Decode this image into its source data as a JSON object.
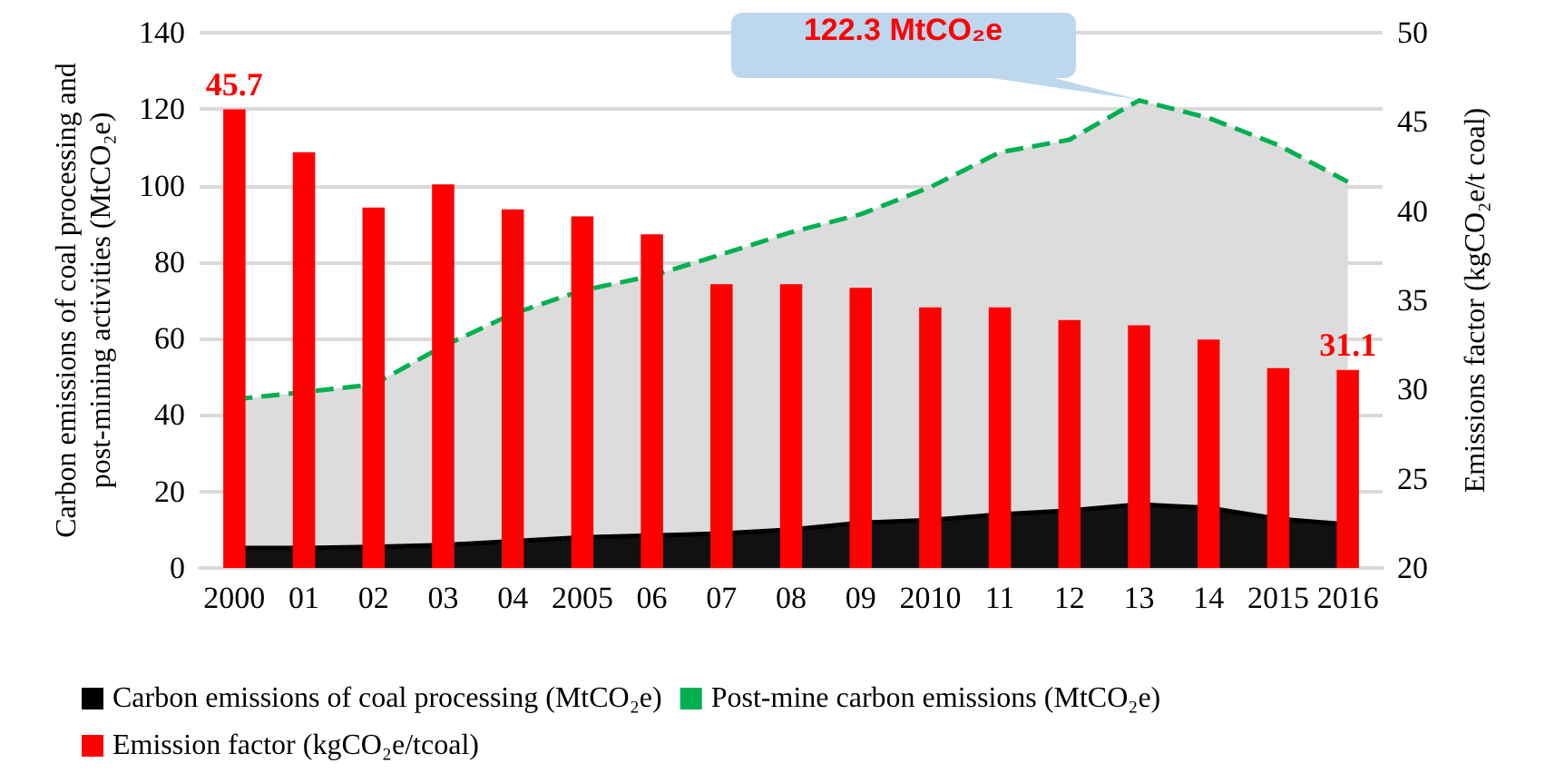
{
  "chart_data": {
    "type": "area",
    "categories": [
      "2000",
      "01",
      "02",
      "03",
      "04",
      "2005",
      "06",
      "07",
      "08",
      "09",
      "2010",
      "11",
      "12",
      "13",
      "14",
      "2015",
      "2016"
    ],
    "ylabel": "Carbon emissions of coal processing and post-mining activities (MtCO₂e)",
    "y2label": "Emissions factor (kgCO₂e/t coal)",
    "ylim": [
      0,
      140
    ],
    "yticks": [
      0,
      20,
      40,
      60,
      80,
      100,
      120,
      140
    ],
    "y2lim": [
      20,
      50
    ],
    "y2ticks": [
      20,
      25,
      30,
      35,
      40,
      45,
      50
    ],
    "grid": "y",
    "legend": "bottom",
    "marker": "none",
    "series": [
      {
        "name": "Post-mine carbon emissions (MtCO₂e)",
        "color": "#00b050",
        "line_style": "dashed",
        "values": [
          44.1,
          46,
          48,
          58,
          66.5,
          72.6,
          76.4,
          82,
          87.8,
          92.5,
          99.6,
          108.7,
          112,
          122.3,
          117.7,
          110.6,
          101
        ]
      },
      {
        "name": "Carbon emissions of coal processing (MtCO₂e)",
        "color": "#000000",
        "values": [
          5.2,
          5.2,
          5.5,
          6,
          7,
          8,
          8.5,
          9,
          10,
          11.8,
          12.5,
          14,
          15,
          16.6,
          15.7,
          12.8,
          11.4
        ]
      },
      {
        "name": "Emission factor (kgCO₂e/tcoal)",
        "type": "bar",
        "axis": "y2",
        "color": "#ff0000",
        "values": [
          45.7,
          43.3,
          40.2,
          41.5,
          40.1,
          39.7,
          38.7,
          35.9,
          35.9,
          35.7,
          34.6,
          34.6,
          33.9,
          33.6,
          32.8,
          31.2,
          31.1
        ],
        "value_labels": [
          "45.7",
          null,
          null,
          null,
          null,
          null,
          null,
          null,
          null,
          null,
          null,
          null,
          null,
          null,
          null,
          null,
          "31.1"
        ]
      }
    ],
    "annotations": [
      {
        "text": "122.3 MtCO₂e",
        "x": "13",
        "y": 122.3
      }
    ]
  }
}
